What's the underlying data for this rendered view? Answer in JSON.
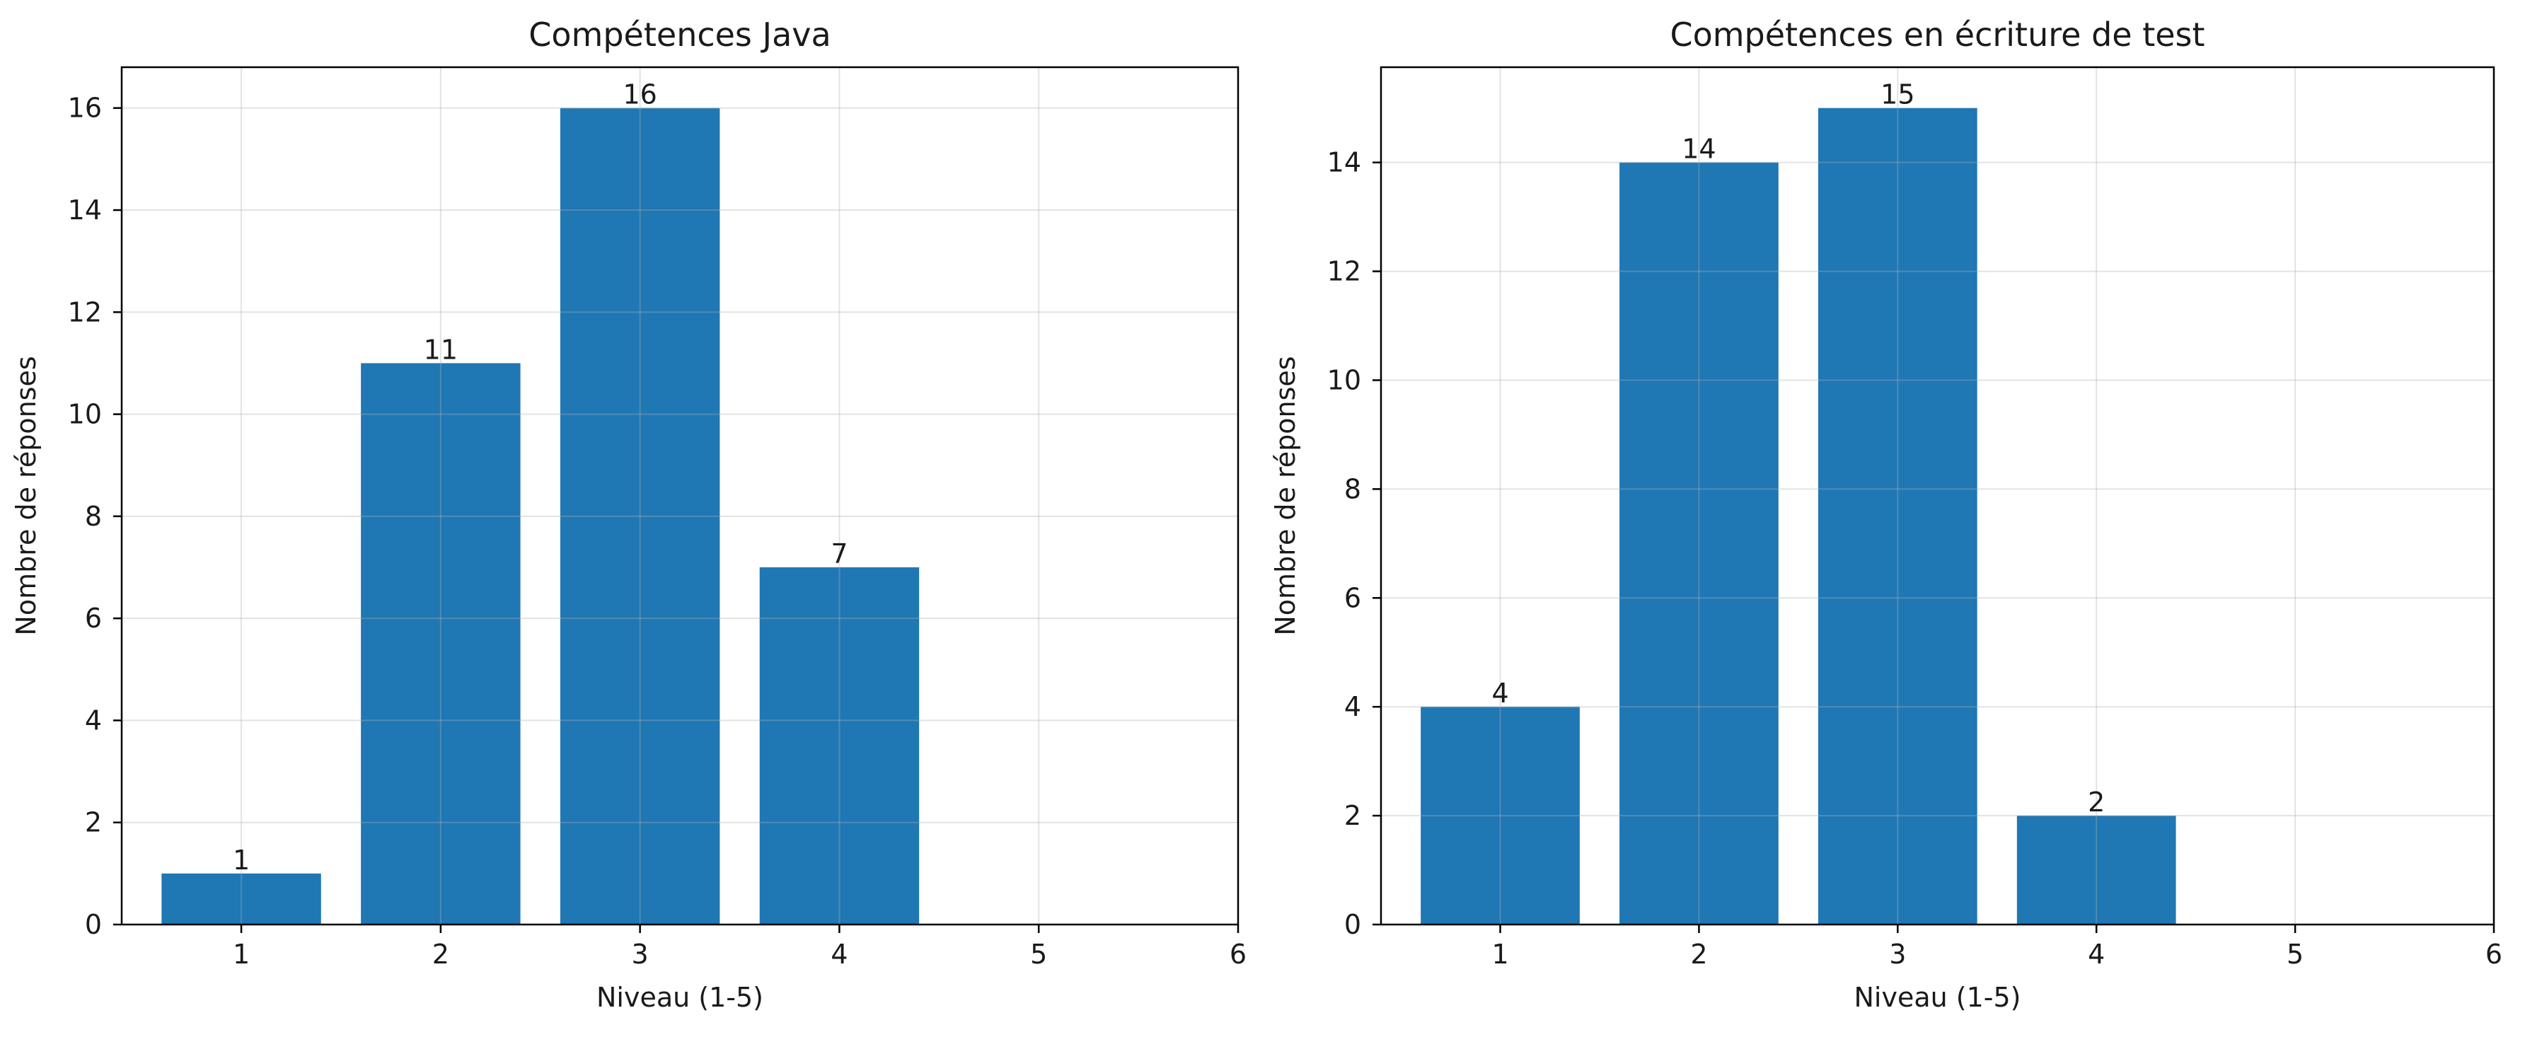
{
  "chart_data": [
    {
      "type": "bar",
      "title": "Compétences Java",
      "xlabel": "Niveau (1-5)",
      "ylabel": "Nombre de réponses",
      "categories": [
        1,
        2,
        3,
        4
      ],
      "values": [
        1,
        11,
        16,
        7
      ],
      "xlim": [
        0.4,
        6
      ],
      "xticks": [
        1,
        2,
        3,
        4,
        5,
        6
      ],
      "ylim": [
        0,
        16.8
      ],
      "yticks": [
        0,
        2,
        4,
        6,
        8,
        10,
        12,
        14,
        16
      ],
      "grid": true,
      "bar_color": "#1f77b4"
    },
    {
      "type": "bar",
      "title": "Compétences en écriture de test",
      "xlabel": "Niveau (1-5)",
      "ylabel": "Nombre de réponses",
      "categories": [
        1,
        2,
        3,
        4
      ],
      "values": [
        4,
        14,
        15,
        2
      ],
      "xlim": [
        0.4,
        6
      ],
      "xticks": [
        1,
        2,
        3,
        4,
        5,
        6
      ],
      "ylim": [
        0,
        15.75
      ],
      "yticks": [
        0,
        2,
        4,
        6,
        8,
        10,
        12,
        14
      ],
      "grid": true,
      "bar_color": "#1f77b4"
    }
  ]
}
